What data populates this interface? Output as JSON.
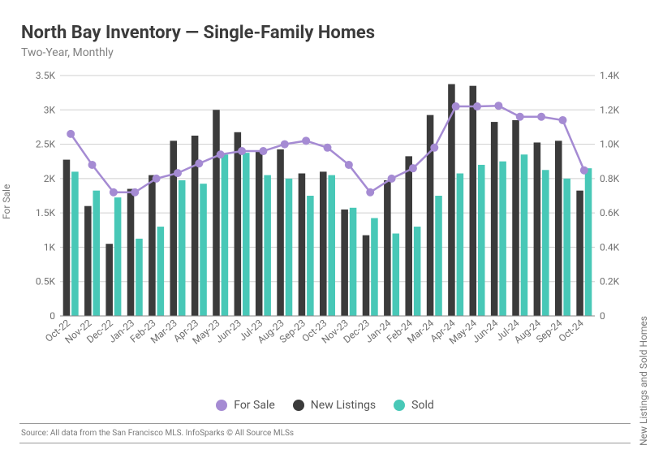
{
  "title": "North Bay Inventory — Single-Family Homes",
  "subtitle": "Two-Year, Monthly",
  "source": "Source:  All data from the San Francisco MLS. InfoSparks © All Source MLSs",
  "legend": {
    "for_sale": "For Sale",
    "new_listings": "New Listings",
    "sold": "Sold"
  },
  "axis": {
    "left_label": "For Sale",
    "right_label": "New Listings and Sold Homes"
  },
  "chart": {
    "type": "bar+line",
    "background_color": "#ffffff",
    "grid_color": "#cfcfcf",
    "axis_color": "#888888",
    "text_color": "#6f6f6f",
    "bar_group_gap_ratio": 0.28,
    "bar_inner_gap_ratio": 0.1,
    "categories": [
      "Oct-22",
      "Nov-22",
      "Dec-22",
      "Jan-23",
      "Feb-23",
      "Mar-23",
      "Apr-23",
      "May-23",
      "Jun-23",
      "Jul-23",
      "Aug-23",
      "Sep-23",
      "Oct-23",
      "Nov-23",
      "Dec-23",
      "Jan-24",
      "Feb-24",
      "Mar-24",
      "Apr-24",
      "May-24",
      "Jun-24",
      "Jul-24",
      "Aug-24",
      "Sep-24",
      "Oct-24"
    ],
    "left_y": {
      "min": 0,
      "max": 3500,
      "ticks": [
        0,
        500,
        1000,
        1500,
        2000,
        2500,
        3000,
        3500
      ],
      "tick_labels": [
        "0",
        "0.5K",
        "1K",
        "1.5K",
        "2K",
        "2.5K",
        "3K",
        "3.5K"
      ]
    },
    "right_y": {
      "min": 0,
      "max": 1400,
      "ticks": [
        0,
        200,
        400,
        600,
        800,
        1000,
        1200,
        1400
      ],
      "tick_labels": [
        "0",
        "0.2K",
        "0.4K",
        "0.6K",
        "0.8K",
        "1.0K",
        "1.2K",
        "1.4K"
      ]
    },
    "series": {
      "for_sale": {
        "type": "line",
        "axis": "left",
        "color": "#a58bd3",
        "marker_color": "#a58bd3",
        "marker_radius": 5,
        "line_width": 2.5,
        "values": [
          2650,
          2200,
          1800,
          1800,
          2000,
          2080,
          2220,
          2350,
          2400,
          2400,
          2500,
          2550,
          2450,
          2200,
          1800,
          2000,
          2150,
          2450,
          3050,
          3050,
          3060,
          2900,
          2900,
          2850,
          2120
        ]
      },
      "new_listings": {
        "type": "bar",
        "axis": "right",
        "color": "#3b3b3b",
        "values": [
          910,
          640,
          420,
          740,
          820,
          1020,
          1050,
          1200,
          1070,
          960,
          970,
          830,
          840,
          620,
          470,
          790,
          930,
          1170,
          1350,
          1340,
          1130,
          1140,
          1010,
          1020,
          730
        ]
      },
      "sold": {
        "type": "bar",
        "axis": "right",
        "color": "#48c8b7",
        "values": [
          840,
          730,
          690,
          450,
          520,
          790,
          770,
          940,
          950,
          820,
          800,
          700,
          820,
          630,
          570,
          480,
          520,
          700,
          830,
          880,
          900,
          940,
          850,
          800,
          860
        ]
      }
    }
  }
}
